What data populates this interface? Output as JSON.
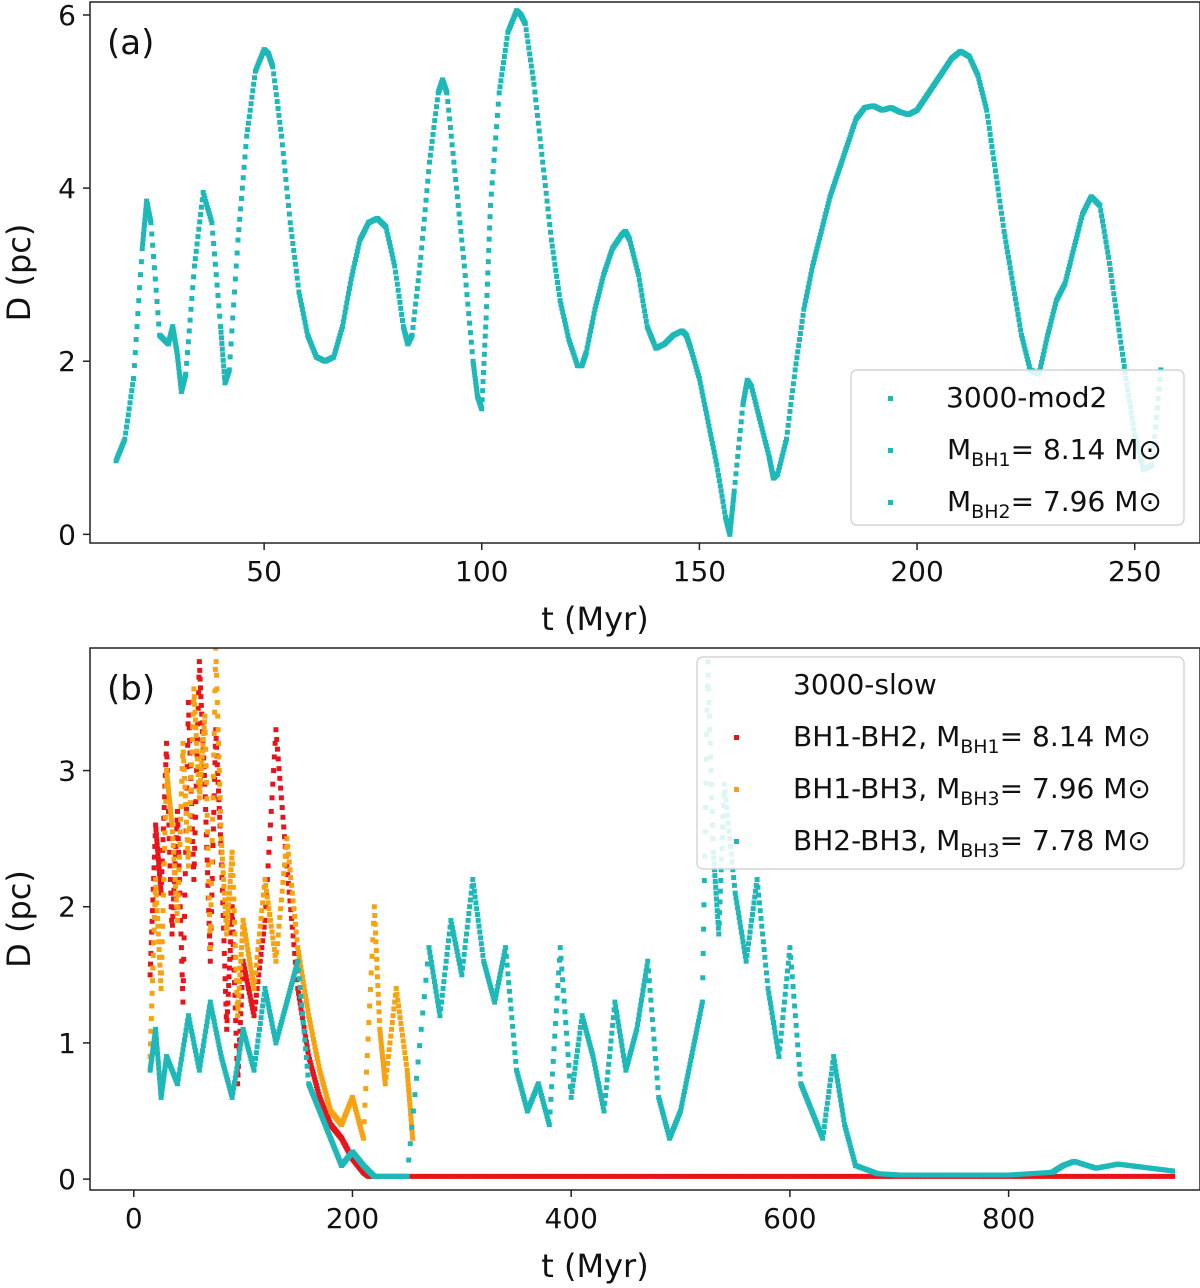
{
  "chart_data": [
    {
      "panel": "(a)",
      "type": "scatter",
      "xlabel": "t (Myr)",
      "ylabel": "D (pc)",
      "xlim": [
        10,
        265
      ],
      "ylim": [
        -0.1,
        6.15
      ],
      "xticks": [
        50,
        100,
        150,
        200,
        250
      ],
      "yticks": [
        0,
        2,
        4,
        6
      ],
      "legend": {
        "placement": "lower-right",
        "title": "3000-mod2",
        "entries": [
          {
            "pre": "M",
            "sub": "BH1",
            "post": "= 8.14 M⊙",
            "color": "#1fb8b8"
          },
          {
            "pre": "M",
            "sub": "BH2",
            "post": "= 7.96 M⊙",
            "color": "#1fb8b8"
          }
        ]
      },
      "series": [
        {
          "name": "3000-mod2",
          "color": "#1fb8b8",
          "x": [
            16,
            18,
            20,
            22,
            23,
            24,
            26,
            28,
            29,
            30,
            31,
            32,
            34,
            36,
            38,
            40,
            41,
            42,
            44,
            46,
            48,
            50,
            51,
            52,
            54,
            56,
            58,
            60,
            62,
            64,
            66,
            68,
            70,
            72,
            74,
            76,
            78,
            80,
            82,
            83,
            84,
            86,
            88,
            90,
            91,
            92,
            94,
            96,
            98,
            99,
            100,
            101,
            102,
            104,
            106,
            108,
            109,
            110,
            112,
            114,
            116,
            118,
            120,
            122,
            123,
            124,
            126,
            128,
            130,
            132,
            133,
            134,
            136,
            138,
            140,
            142,
            144,
            146,
            147,
            148,
            150,
            152,
            154,
            156,
            157,
            158,
            160,
            161,
            162,
            164,
            166,
            167,
            168,
            170,
            172,
            174,
            176,
            178,
            180,
            182,
            184,
            186,
            188,
            190,
            192,
            194,
            196,
            198,
            200,
            202,
            204,
            206,
            208,
            210,
            212,
            214,
            216,
            218,
            220,
            222,
            224,
            226,
            228,
            230,
            232,
            234,
            236,
            238,
            240,
            242,
            244,
            246,
            248,
            250,
            252,
            254,
            256
          ],
          "y": [
            0.85,
            1.1,
            1.8,
            3.3,
            3.85,
            3.6,
            2.3,
            2.2,
            2.4,
            2.1,
            1.65,
            1.85,
            3.1,
            3.95,
            3.6,
            2.4,
            1.75,
            1.9,
            3.4,
            4.6,
            5.35,
            5.6,
            5.55,
            5.4,
            4.6,
            3.6,
            2.8,
            2.3,
            2.05,
            2.0,
            2.05,
            2.4,
            2.95,
            3.4,
            3.6,
            3.65,
            3.55,
            3.1,
            2.4,
            2.2,
            2.3,
            3.2,
            4.3,
            5.1,
            5.25,
            5.1,
            4.1,
            3.1,
            2.0,
            1.6,
            1.45,
            2.5,
            3.8,
            5.1,
            5.8,
            6.05,
            6.0,
            5.9,
            5.2,
            4.3,
            3.4,
            2.7,
            2.25,
            1.95,
            1.95,
            2.1,
            2.6,
            3.0,
            3.3,
            3.45,
            3.5,
            3.4,
            3.0,
            2.4,
            2.15,
            2.2,
            2.3,
            2.35,
            2.3,
            2.15,
            1.8,
            1.3,
            0.8,
            0.2,
            0.0,
            0.5,
            1.5,
            1.78,
            1.7,
            1.3,
            0.9,
            0.65,
            0.7,
            1.1,
            1.9,
            2.6,
            3.1,
            3.5,
            3.9,
            4.2,
            4.5,
            4.8,
            4.93,
            4.95,
            4.9,
            4.93,
            4.88,
            4.85,
            4.9,
            5.05,
            5.2,
            5.35,
            5.5,
            5.58,
            5.52,
            5.3,
            4.9,
            4.2,
            3.5,
            2.9,
            2.3,
            1.9,
            1.85,
            2.3,
            2.7,
            2.9,
            3.3,
            3.7,
            3.9,
            3.8,
            3.2,
            2.5,
            1.8,
            1.15,
            0.75,
            0.8,
            1.9
          ]
        }
      ]
    },
    {
      "panel": "(b)",
      "type": "scatter",
      "xlabel": "t (Myr)",
      "ylabel": "D (pc)",
      "xlim": [
        -40,
        975
      ],
      "ylim": [
        -0.08,
        3.9
      ],
      "xticks": [
        0,
        200,
        400,
        600,
        800
      ],
      "yticks": [
        0,
        1,
        2,
        3
      ],
      "legend": {
        "placement": "top-right",
        "title": "3000-slow",
        "entries": [
          {
            "pre": "BH1-BH2, M",
            "sub": "BH1",
            "post": "= 8.14 M⊙",
            "color": "#e8141c"
          },
          {
            "pre": "BH1-BH3, M",
            "sub": "BH3",
            "post": "= 7.96 M⊙",
            "color": "#f5a312"
          },
          {
            "pre": "BH2-BH3, M",
            "sub": "BH3",
            "post": "= 7.78 M⊙",
            "color": "#1fb8b8"
          }
        ]
      },
      "series": [
        {
          "name": "BH1-BH2",
          "color": "#e8141c",
          "x": [
            15,
            20,
            25,
            30,
            35,
            40,
            45,
            50,
            55,
            60,
            65,
            70,
            75,
            80,
            85,
            90,
            95,
            100,
            110,
            120,
            130,
            140,
            150,
            160,
            170,
            180,
            190,
            200,
            210,
            215,
            250,
            300,
            350,
            400,
            450,
            500,
            550,
            600,
            650,
            700,
            750,
            800,
            850,
            900,
            950
          ],
          "y": [
            1.5,
            2.6,
            2.1,
            3.2,
            1.8,
            2.7,
            1.3,
            3.5,
            2.2,
            3.8,
            2.9,
            1.6,
            3.3,
            2.4,
            1.1,
            2.0,
            0.7,
            1.6,
            1.2,
            1.9,
            3.3,
            2.3,
            1.4,
            0.9,
            0.6,
            0.4,
            0.3,
            0.15,
            0.05,
            0.02,
            0.02,
            0.02,
            0.02,
            0.02,
            0.02,
            0.02,
            0.02,
            0.02,
            0.02,
            0.02,
            0.02,
            0.02,
            0.02,
            0.02,
            0.02
          ]
        },
        {
          "name": "BH1-BH3",
          "color": "#f5a312",
          "x": [
            15,
            20,
            25,
            30,
            35,
            40,
            45,
            50,
            55,
            60,
            65,
            70,
            75,
            80,
            85,
            90,
            95,
            100,
            110,
            120,
            130,
            140,
            150,
            160,
            170,
            180,
            190,
            200,
            210,
            220,
            225,
            230,
            240,
            250,
            255
          ],
          "y": [
            0.9,
            2.2,
            1.4,
            3.0,
            2.6,
            1.9,
            3.2,
            2.3,
            3.6,
            2.8,
            3.4,
            1.7,
            3.9,
            2.5,
            1.8,
            2.4,
            1.2,
            1.9,
            1.4,
            2.2,
            1.6,
            2.5,
            1.7,
            1.2,
            0.8,
            0.5,
            0.4,
            0.6,
            0.3,
            2.0,
            1.1,
            0.7,
            1.4,
            0.8,
            0.3
          ]
        },
        {
          "name": "BH2-BH3",
          "color": "#1fb8b8",
          "x": [
            15,
            20,
            25,
            30,
            40,
            50,
            60,
            70,
            80,
            90,
            100,
            110,
            120,
            130,
            140,
            150,
            160,
            170,
            180,
            190,
            200,
            210,
            220,
            250,
            270,
            280,
            290,
            300,
            310,
            320,
            330,
            340,
            350,
            360,
            370,
            380,
            390,
            400,
            410,
            420,
            430,
            440,
            450,
            460,
            470,
            480,
            490,
            500,
            510,
            520,
            525,
            530,
            535,
            540,
            550,
            560,
            570,
            580,
            590,
            600,
            610,
            620,
            630,
            640,
            650,
            660,
            680,
            700,
            750,
            800,
            840,
            850,
            860,
            880,
            900,
            920,
            950
          ],
          "y": [
            0.8,
            1.1,
            0.6,
            0.9,
            0.7,
            1.2,
            0.8,
            1.3,
            0.9,
            0.6,
            1.1,
            0.8,
            1.4,
            1.0,
            1.3,
            1.6,
            0.7,
            0.5,
            0.3,
            0.1,
            0.2,
            0.1,
            0.02,
            0.02,
            1.7,
            1.2,
            1.9,
            1.5,
            2.2,
            1.6,
            1.3,
            1.7,
            0.8,
            0.5,
            0.7,
            0.4,
            1.7,
            0.6,
            1.2,
            0.9,
            0.5,
            1.3,
            0.8,
            1.1,
            1.6,
            0.6,
            0.3,
            0.5,
            0.9,
            1.3,
            3.8,
            2.4,
            1.8,
            2.9,
            2.1,
            1.6,
            2.2,
            1.4,
            0.9,
            1.7,
            0.7,
            0.5,
            0.3,
            0.9,
            0.4,
            0.1,
            0.04,
            0.03,
            0.03,
            0.03,
            0.05,
            0.1,
            0.13,
            0.08,
            0.11,
            0.09,
            0.06
          ]
        }
      ]
    }
  ]
}
